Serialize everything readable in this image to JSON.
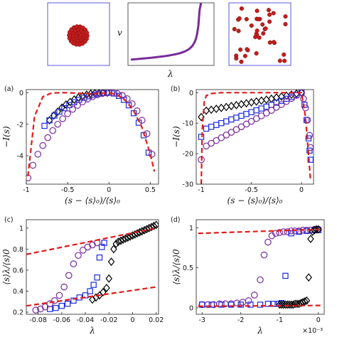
{
  "figure": {
    "colors": {
      "black": "#000000",
      "blue": "#1a2be0",
      "purple": "#7a2a9a",
      "red": "#e01b1b",
      "box": "#5a5ad8"
    },
    "top_row": {
      "left_box_icon": "clustered-particles",
      "middle_ylabel": "v",
      "middle_xlabel": "λ",
      "right_box_icon": "dispersed-particles"
    }
  },
  "chart_data": [
    {
      "id": "a",
      "panel_label": "(a)",
      "type": "scatter",
      "xlabel": "(s − ⟨s⟩₀)/⟨s⟩₀",
      "ylabel": "−I(s)",
      "xlim": [
        -1,
        0.6
      ],
      "ylim": [
        -5.8,
        0.2
      ],
      "xticks": [
        "-1",
        "-0.5",
        "0",
        "0.5"
      ],
      "xtick_values": [
        -1,
        -0.5,
        0,
        0.5
      ],
      "yticks": [
        "0",
        "-2",
        "-4"
      ],
      "ytick_values": [
        0,
        -2,
        -4
      ],
      "series": [
        {
          "marker": "dashed-line",
          "color": "red",
          "x": [
            -0.98,
            -0.9,
            -0.8,
            -0.7,
            -0.6,
            -0.5,
            -0.4,
            -0.3,
            -0.2,
            -0.1,
            0,
            0.1,
            0.2,
            0.3,
            0.4,
            0.5,
            0.55
          ],
          "y": [
            -5.3,
            -1.5,
            -0.25,
            -0.03,
            0,
            0,
            -0.02,
            -0.05,
            -0.07,
            -0.04,
            0,
            -0.12,
            -0.5,
            -1.15,
            -2.2,
            -3.9,
            -5.0
          ]
        },
        {
          "marker": "diamond",
          "color": "black",
          "x": [
            -0.72,
            -0.67,
            -0.62,
            -0.57,
            -0.52,
            -0.47,
            -0.42,
            -0.37,
            -0.32,
            -0.27,
            -0.22,
            -0.17,
            -0.12,
            -0.07,
            -0.02
          ],
          "y": [
            -1.75,
            -1.45,
            -1.2,
            -0.95,
            -0.75,
            -0.58,
            -0.43,
            -0.3,
            -0.2,
            -0.12,
            -0.06,
            -0.03,
            -0.01,
            0,
            0
          ]
        },
        {
          "marker": "square",
          "color": "blue",
          "x": [
            -0.78,
            -0.72,
            -0.66,
            -0.6,
            -0.54,
            -0.48,
            -0.42,
            -0.36,
            -0.3,
            -0.24,
            -0.18,
            -0.12,
            -0.06,
            0,
            0.06,
            0.12,
            0.18,
            0.24,
            0.3,
            0.36,
            0.42,
            0.48
          ],
          "y": [
            -2.1,
            -1.75,
            -1.45,
            -1.2,
            -0.98,
            -0.78,
            -0.6,
            -0.45,
            -0.32,
            -0.22,
            -0.13,
            -0.06,
            -0.02,
            0,
            -0.05,
            -0.2,
            -0.45,
            -0.8,
            -1.3,
            -1.9,
            -2.7,
            -3.8
          ]
        },
        {
          "marker": "circle",
          "color": "purple",
          "x": [
            -0.98,
            -0.92,
            -0.86,
            -0.8,
            -0.74,
            -0.68,
            -0.62,
            -0.56,
            -0.5,
            -0.44,
            -0.38,
            -0.32,
            -0.26,
            -0.2,
            -0.14,
            -0.08,
            -0.02,
            0.04,
            0.1,
            0.16,
            0.22,
            0.28,
            0.34,
            0.4,
            0.46,
            0.52
          ],
          "y": [
            -5.4,
            -4.6,
            -3.9,
            -3.35,
            -2.85,
            -2.4,
            -2.0,
            -1.65,
            -1.33,
            -1.05,
            -0.8,
            -0.58,
            -0.4,
            -0.25,
            -0.13,
            -0.05,
            -0.01,
            0,
            -0.05,
            -0.17,
            -0.38,
            -0.7,
            -1.15,
            -1.75,
            -2.6,
            -3.9
          ]
        }
      ]
    },
    {
      "id": "b",
      "panel_label": "(b)",
      "type": "scatter",
      "xlabel": "(s − ⟨s⟩₀)/⟨s⟩₀",
      "ylabel": "−I(s)",
      "xlim": [
        -1.05,
        0.12
      ],
      "ylim": [
        -30,
        1
      ],
      "xticks": [
        "-1",
        "-0.5",
        "0"
      ],
      "xtick_values": [
        -1,
        -0.5,
        0
      ],
      "yticks": [
        "0",
        "-10",
        "-20",
        "-30"
      ],
      "ytick_values": [
        0,
        -10,
        -20,
        -30
      ],
      "series": [
        {
          "marker": "dashed-line",
          "color": "red",
          "x": [
            -1.0,
            -0.99,
            -0.97,
            -0.95,
            -0.9,
            -0.8,
            -0.6,
            -0.4,
            -0.2,
            0,
            0.04,
            0.07,
            0.09
          ],
          "y": [
            -30,
            -12,
            -3,
            -1,
            -0.3,
            0,
            0,
            0,
            0,
            0,
            -8,
            -20,
            -29
          ]
        },
        {
          "marker": "diamond",
          "color": "black",
          "x": [
            -1.0,
            -0.95,
            -0.9,
            -0.85,
            -0.8,
            -0.75,
            -0.7,
            -0.65,
            -0.6,
            -0.55,
            -0.5,
            -0.45,
            -0.4,
            -0.35,
            -0.3,
            -0.25,
            -0.2,
            -0.15,
            -0.1,
            -0.05,
            0
          ],
          "y": [
            -8,
            -5.9,
            -5.6,
            -5.3,
            -5,
            -4.7,
            -4.4,
            -4.1,
            -3.8,
            -3.5,
            -3.2,
            -2.9,
            -2.6,
            -2.3,
            -2,
            -1.6,
            -1.3,
            -1,
            -0.65,
            -0.3,
            0
          ]
        },
        {
          "marker": "square",
          "color": "blue",
          "x": [
            -1.0,
            -0.95,
            -0.9,
            -0.85,
            -0.8,
            -0.75,
            -0.7,
            -0.65,
            -0.6,
            -0.55,
            -0.5,
            -0.45,
            -0.4,
            -0.35,
            -0.3,
            -0.25,
            -0.2,
            -0.15,
            -0.1,
            -0.05,
            0,
            0.03,
            0.05,
            0.07,
            0.08,
            0.09
          ],
          "y": [
            -14.5,
            -11.8,
            -11.2,
            -10.6,
            -10,
            -9.4,
            -8.8,
            -8.2,
            -7.6,
            -7,
            -6.4,
            -5.8,
            -5.2,
            -4.6,
            -4,
            -3.3,
            -2.7,
            -2,
            -1.35,
            -0.7,
            0,
            -4,
            -9,
            -15,
            -19,
            -22
          ]
        },
        {
          "marker": "circle",
          "color": "purple",
          "x": [
            -1.0,
            -0.95,
            -0.9,
            -0.85,
            -0.8,
            -0.75,
            -0.7,
            -0.65,
            -0.6,
            -0.55,
            -0.5,
            -0.45,
            -0.4,
            -0.35,
            -0.3,
            -0.25,
            -0.2,
            -0.15,
            -0.1,
            -0.05,
            0,
            0.02,
            0.04,
            0.06,
            0.08,
            0.09
          ],
          "y": [
            -22,
            -17.5,
            -16.6,
            -15.7,
            -14.8,
            -13.9,
            -13,
            -12.1,
            -11.2,
            -10.3,
            -9.4,
            -8.5,
            -7.6,
            -6.7,
            -5.8,
            -4.8,
            -3.9,
            -2.9,
            -1.9,
            -0.9,
            0,
            -2,
            -5,
            -9,
            -14,
            -18
          ]
        }
      ]
    },
    {
      "id": "c",
      "panel_label": "(c)",
      "type": "scatter",
      "xlabel": "λ",
      "ylabel": "⟨s⟩λ/⟨s⟩0",
      "xlim": [
        -0.09,
        0.022
      ],
      "ylim": [
        0.18,
        1.08
      ],
      "xticks": [
        "-0.08",
        "-0.06",
        "-0.04",
        "-0.02",
        "0",
        "0.02"
      ],
      "xtick_values": [
        -0.08,
        -0.06,
        -0.04,
        -0.02,
        0,
        0.02
      ],
      "yticks": [
        "0.2",
        "0.4",
        "0.6",
        "0.8",
        "1"
      ],
      "ytick_values": [
        0.2,
        0.4,
        0.6,
        0.8,
        1
      ],
      "series": [
        {
          "marker": "dashed-line",
          "color": "red",
          "x": [
            -0.09,
            0.02
          ],
          "y": [
            0.75,
            1.0
          ]
        },
        {
          "marker": "dashed-line",
          "color": "red",
          "x": [
            -0.09,
            0.02
          ],
          "y": [
            0.26,
            0.44
          ]
        },
        {
          "marker": "diamond",
          "color": "black",
          "x": [
            -0.034,
            -0.031,
            -0.028,
            -0.025,
            -0.022,
            -0.02,
            -0.018,
            -0.016,
            -0.014,
            -0.012,
            -0.01,
            -0.008,
            -0.006,
            -0.004,
            -0.002,
            0,
            0.002,
            0.004,
            0.006,
            0.008,
            0.01,
            0.012,
            0.014,
            0.016,
            0.018,
            0.02
          ],
          "y": [
            0.32,
            0.34,
            0.36,
            0.39,
            0.43,
            0.52,
            0.68,
            0.8,
            0.85,
            0.87,
            0.88,
            0.89,
            0.9,
            0.91,
            0.92,
            0.93,
            0.94,
            0.95,
            0.96,
            0.97,
            0.98,
            0.99,
            1.0,
            1.01,
            1.02,
            1.03
          ]
        },
        {
          "marker": "square",
          "color": "blue",
          "x": [
            -0.07,
            -0.065,
            -0.06,
            -0.055,
            -0.05,
            -0.045,
            -0.04,
            -0.036,
            -0.033,
            -0.03,
            -0.028,
            -0.026,
            -0.024
          ],
          "y": [
            0.23,
            0.24,
            0.26,
            0.28,
            0.31,
            0.34,
            0.36,
            0.4,
            0.46,
            0.53,
            0.72,
            0.82,
            0.86
          ]
        },
        {
          "marker": "circle",
          "color": "purple",
          "x": [
            -0.082,
            -0.078,
            -0.074,
            -0.07,
            -0.066,
            -0.062,
            -0.058,
            -0.054,
            -0.05,
            -0.046,
            -0.042,
            -0.038,
            -0.034,
            -0.03
          ],
          "y": [
            0.22,
            0.23,
            0.25,
            0.28,
            0.31,
            0.36,
            0.44,
            0.55,
            0.66,
            0.74,
            0.79,
            0.82,
            0.84,
            0.86
          ]
        }
      ]
    },
    {
      "id": "d",
      "panel_label": "(d)",
      "type": "scatter",
      "xlabel": "λ",
      "ylabel": "⟨s⟩λ/⟨s⟩0",
      "x_scale_note": "×10⁻³",
      "xlim": [
        -3.15,
        0.15
      ],
      "ylim": [
        -0.08,
        1.1
      ],
      "xticks": [
        "-3",
        "-2",
        "-1",
        "0"
      ],
      "xtick_values": [
        -3,
        -2,
        -1,
        0
      ],
      "yticks": [
        "0",
        "0.5",
        "1"
      ],
      "ytick_values": [
        0,
        0.5,
        1
      ],
      "series": [
        {
          "marker": "dashed-line",
          "color": "red",
          "x": [
            -3.1,
            0.1
          ],
          "y": [
            0.93,
            0.98
          ]
        },
        {
          "marker": "dashed-line",
          "color": "red",
          "x": [
            -3.1,
            0.1
          ],
          "y": [
            0.02,
            0.03
          ]
        },
        {
          "marker": "circle",
          "color": "purple",
          "x": [
            -3.0,
            -2.85,
            -2.7,
            -2.55,
            -2.4,
            -2.25,
            -2.1,
            -1.95,
            -1.8,
            -1.65,
            -1.5,
            -1.4,
            -1.3,
            -1.2,
            -1.1,
            -1.0,
            -0.9,
            -0.8,
            -0.7,
            -0.6,
            -0.5,
            -0.4,
            -0.3,
            -0.2,
            -0.1,
            0.0
          ],
          "y": [
            0.04,
            0.04,
            0.04,
            0.05,
            0.05,
            0.05,
            0.06,
            0.07,
            0.09,
            0.16,
            0.35,
            0.66,
            0.82,
            0.9,
            0.93,
            0.94,
            0.95,
            0.95,
            0.96,
            0.96,
            0.96,
            0.97,
            0.97,
            0.97,
            0.98,
            0.98
          ]
        },
        {
          "marker": "square",
          "color": "blue",
          "x": [
            -3.0,
            -2.75,
            -2.5,
            -2.25,
            -2.0,
            -1.75,
            -1.5,
            -1.3,
            -1.15,
            -1.05,
            -0.95,
            -0.85,
            -0.7,
            -0.5,
            -0.3,
            -0.1,
            0.0
          ],
          "y": [
            0.04,
            0.04,
            0.04,
            0.04,
            0.04,
            0.04,
            0.04,
            0.05,
            0.05,
            0.05,
            0.06,
            0.4,
            0.93,
            0.95,
            0.96,
            0.97,
            0.97
          ]
        },
        {
          "marker": "diamond",
          "color": "black",
          "x": [
            -1.0,
            -0.95,
            -0.9,
            -0.85,
            -0.8,
            -0.75,
            -0.7,
            -0.65,
            -0.6,
            -0.55,
            -0.5,
            -0.45,
            -0.4,
            -0.35,
            -0.3,
            -0.25,
            -0.2,
            -0.15,
            -0.1,
            -0.05,
            0.0
          ],
          "y": [
            0.04,
            0.04,
            0.04,
            0.04,
            0.04,
            0.04,
            0.04,
            0.04,
            0.05,
            0.05,
            0.05,
            0.06,
            0.07,
            0.08,
            0.09,
            0.38,
            0.86,
            0.95,
            0.97,
            0.98,
            0.98
          ]
        }
      ]
    }
  ]
}
